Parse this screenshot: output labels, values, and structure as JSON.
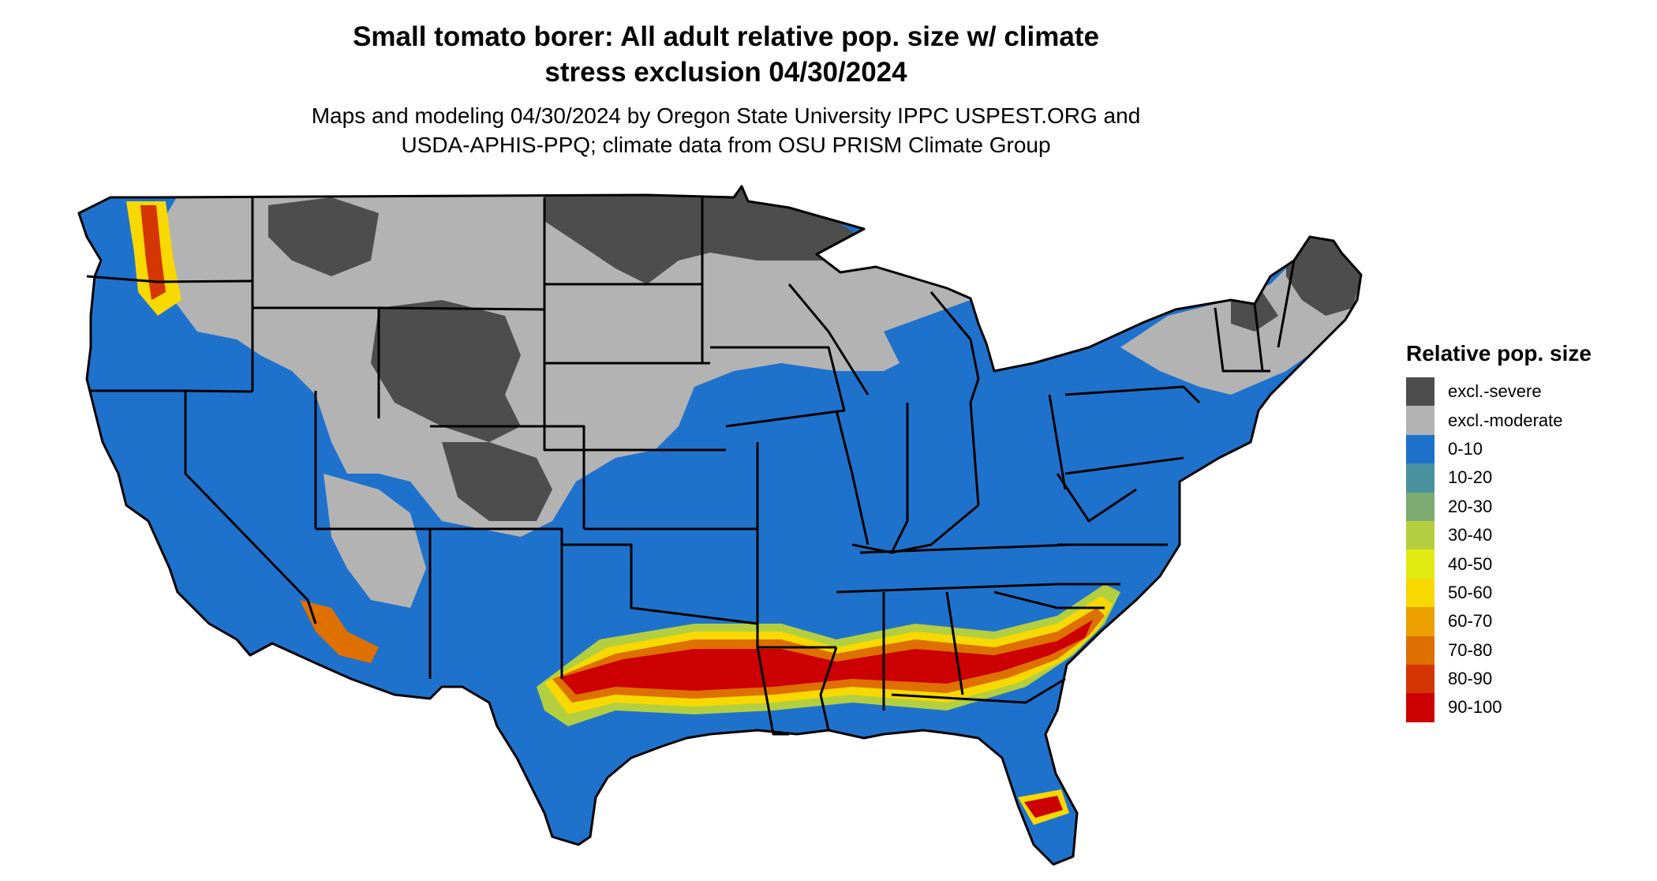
{
  "title": {
    "line1": "Small tomato borer: All adult relative pop. size w/ climate",
    "line2": "stress exclusion 04/30/2024"
  },
  "subtitle": {
    "line1": "Maps and modeling 04/30/2024 by Oregon State University IPPC USPEST.ORG and",
    "line2": "USDA-APHIS-PPQ; climate data from OSU PRISM Climate Group"
  },
  "legend": {
    "title": "Relative pop. size",
    "items": [
      {
        "label": "excl.-severe",
        "color": "#4d4d4d"
      },
      {
        "label": "excl.-moderate",
        "color": "#b3b3b3"
      },
      {
        "label": "0-10",
        "color": "#1f72cc"
      },
      {
        "label": "10-20",
        "color": "#4a91a0"
      },
      {
        "label": "20-30",
        "color": "#7caa72"
      },
      {
        "label": "30-40",
        "color": "#b3cf40"
      },
      {
        "label": "40-50",
        "color": "#e3ea13"
      },
      {
        "label": "50-60",
        "color": "#f7d900"
      },
      {
        "label": "60-70",
        "color": "#eca000"
      },
      {
        "label": "70-80",
        "color": "#de7000"
      },
      {
        "label": "80-90",
        "color": "#d53500"
      },
      {
        "label": "90-100",
        "color": "#cc0000"
      }
    ]
  }
}
